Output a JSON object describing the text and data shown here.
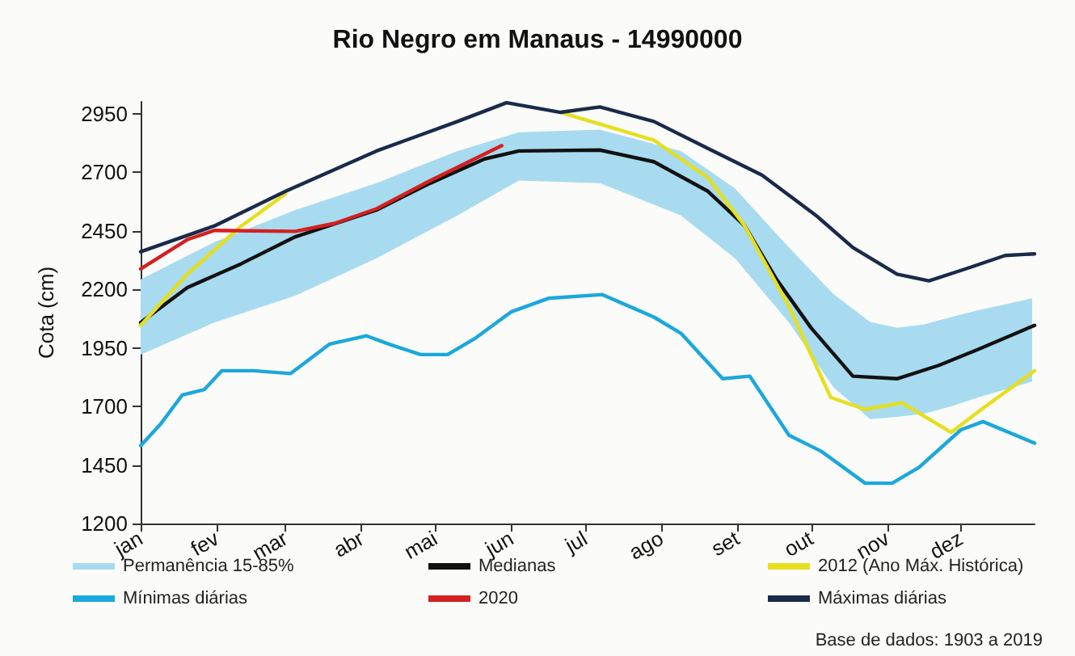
{
  "chart_data": {
    "type": "line",
    "title": "Rio Negro em Manaus - 14990000",
    "ylabel": "Cota (cm)",
    "xlim": [
      "--01-01",
      "--12-31"
    ],
    "xticks": [
      {
        "value": "--01-01",
        "label": "jan"
      },
      {
        "value": "--02-01",
        "label": "fev"
      },
      {
        "value": "--03-01",
        "label": "mar"
      },
      {
        "value": "--04-01",
        "label": "abr"
      },
      {
        "value": "--05-01",
        "label": "mai"
      },
      {
        "value": "--06-01",
        "label": "jun"
      },
      {
        "value": "--07-01",
        "label": "jul"
      },
      {
        "value": "--08-01",
        "label": "ago"
      },
      {
        "value": "--09-01",
        "label": "set"
      },
      {
        "value": "--10-01",
        "label": "out"
      },
      {
        "value": "--11-01",
        "label": "nov"
      },
      {
        "value": "--12-01",
        "label": "dez"
      }
    ],
    "ylim": [
      1200,
      3000
    ],
    "yticks": [
      1200,
      1450,
      1700,
      1950,
      2200,
      2450,
      2700,
      2950
    ],
    "grid": false,
    "legend": "bottom",
    "marker": "none",
    "annotations": [
      "Base de dados: 1903 a 2019"
    ],
    "series": [
      {
        "name": "Permanência 15-85%",
        "type": "area",
        "color": "#a8dbef",
        "x": [
          "--01-01",
          "--01-31",
          "--03-05",
          "--04-07",
          "--05-10",
          "--06-04",
          "--07-07",
          "--08-09",
          "--08-31",
          "--09-22",
          "--10-10",
          "--10-25",
          "--11-05",
          "--11-16",
          "--11-27",
          "--12-08",
          "--12-30"
        ],
        "values": [
          null,
          null,
          null,
          null,
          null,
          null,
          null,
          null,
          null,
          null,
          null,
          null,
          null,
          null,
          null,
          null,
          null
        ],
        "lower": [
          1921,
          2058,
          2172,
          2332,
          2515,
          2664,
          2653,
          2515,
          2332,
          2058,
          1783,
          1646,
          1655,
          1669,
          1700,
          1738,
          1806
        ],
        "upper": [
          2241,
          2401,
          2538,
          2653,
          2790,
          2870,
          2881,
          2790,
          2630,
          2378,
          2180,
          2060,
          2035,
          2050,
          2081,
          2110,
          2161
        ]
      },
      {
        "name": "Medianas",
        "color": "#111111",
        "x": [
          "--01-01",
          "--01-20",
          "--02-11",
          "--03-05",
          "--04-07",
          "--04-29",
          "--05-21",
          "--06-04",
          "--07-07",
          "--07-29",
          "--08-20",
          "--09-04",
          "--09-17",
          "--10-01",
          "--10-18",
          "--11-05",
          "--11-22",
          "--12-08",
          "--12-31"
        ],
        "values": [
          2058,
          2207,
          2309,
          2424,
          2538,
          2653,
          2756,
          2790,
          2794,
          2744,
          2618,
          2470,
          2241,
          2035,
          1829,
          1818,
          1875,
          1943,
          2046
        ]
      },
      {
        "name": "2012 (Ano Máx. Histórica)",
        "color": "#e6df1e",
        "x": [
          "--01-01",
          "--01-20",
          "--02-11",
          "--03-01",
          "--05-01",
          "--06-21",
          "--07-29",
          "--08-20",
          "--09-04",
          "--09-22",
          "--10-09",
          "--10-23",
          "--11-07",
          "--11-27",
          "--12-10",
          "--12-31"
        ],
        "values": [
          2046,
          2264,
          2470,
          2607,
          null,
          2955,
          2836,
          2676,
          2470,
          2126,
          1738,
          1687,
          1715,
          1589,
          1692,
          1852
        ]
      },
      {
        "name": "Mínimas diárias",
        "color": "#1ba8dc",
        "x": [
          "--01-01",
          "--01-09",
          "--01-18",
          "--01-27",
          "--02-03",
          "--02-16",
          "--03-03",
          "--03-19",
          "--04-03",
          "--04-12",
          "--04-25",
          "--05-06",
          "--05-17",
          "--06-01",
          "--06-16",
          "--07-08",
          "--07-29",
          "--08-09",
          "--08-26",
          "--09-06",
          "--09-22",
          "--10-05",
          "--10-23",
          "--11-03",
          "--11-14",
          "--12-01",
          "--12-10",
          "--12-31"
        ],
        "values": [
          1532,
          1623,
          1749,
          1772,
          1852,
          1852,
          1840,
          1966,
          2001,
          1966,
          1921,
          1921,
          1989,
          2104,
          2161,
          2177,
          2081,
          2012,
          1818,
          1829,
          1577,
          1509,
          1372,
          1372,
          1440,
          1600,
          1635,
          1543
        ]
      },
      {
        "name": "2020",
        "color": "#d42020",
        "x": [
          "--01-01",
          "--01-20",
          "--01-31",
          "--03-05",
          "--03-21",
          "--04-07",
          "--04-29",
          "--05-28"
        ],
        "values": [
          2287,
          2412,
          2451,
          2447,
          2481,
          2543,
          2664,
          2813
        ]
      },
      {
        "name": "Máximas diárias",
        "color": "#1a2a4a",
        "x": [
          "--01-01",
          "--01-31",
          "--03-01",
          "--04-07",
          "--05-10",
          "--05-30",
          "--06-21",
          "--07-07",
          "--07-29",
          "--08-20",
          "--09-11",
          "--10-03",
          "--10-18",
          "--11-05",
          "--11-18",
          "--12-03",
          "--12-19",
          "--12-31"
        ],
        "values": [
          2360,
          2470,
          2618,
          2790,
          2916,
          2996,
          2955,
          2978,
          2916,
          2801,
          2687,
          2515,
          2378,
          2264,
          2236,
          2287,
          2344,
          2351
        ]
      }
    ]
  }
}
